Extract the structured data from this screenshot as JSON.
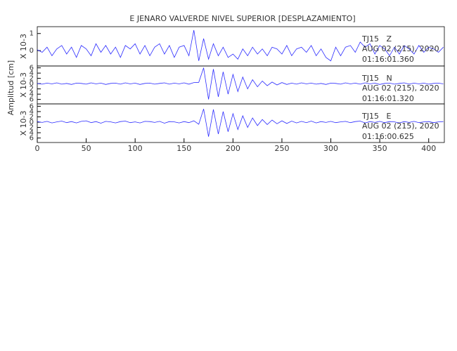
{
  "chart_data": {
    "type": "line",
    "title": "E JENARO VALVERDE NIVEL SUPERIOR [DESPLAZAMIENTO]",
    "ylabel": "Amplitud [cm]",
    "xlim": [
      0,
      416
    ],
    "xticks": [
      0,
      50,
      100,
      150,
      200,
      250,
      300,
      350,
      400
    ],
    "x": [
      0,
      5,
      10,
      15,
      20,
      25,
      30,
      35,
      40,
      45,
      50,
      55,
      60,
      65,
      70,
      75,
      80,
      85,
      90,
      95,
      100,
      105,
      110,
      115,
      120,
      125,
      130,
      135,
      140,
      145,
      150,
      155,
      160,
      165,
      170,
      175,
      180,
      185,
      190,
      195,
      200,
      205,
      210,
      215,
      220,
      225,
      230,
      235,
      240,
      245,
      250,
      255,
      260,
      265,
      270,
      275,
      280,
      285,
      290,
      295,
      300,
      305,
      310,
      315,
      320,
      325,
      330,
      335,
      340,
      345,
      350,
      355,
      360,
      365,
      370,
      375,
      380,
      385,
      390,
      395,
      400,
      405,
      410,
      415
    ],
    "panels": [
      {
        "name": "TJ15   Z",
        "date": "AUG 02 (215), 2020",
        "time": "01:16:01.360",
        "ylabel": "X 10-3",
        "color": "#2b2bff",
        "ylim": [
          -0.9,
          1.4
        ],
        "yticks": [
          1,
          0
        ],
        "values": [
          0.05,
          -0.1,
          0.2,
          -0.3,
          0.1,
          0.3,
          -0.2,
          0.2,
          -0.4,
          0.3,
          0.1,
          -0.3,
          0.4,
          -0.1,
          0.3,
          -0.2,
          0.2,
          -0.4,
          0.3,
          0.1,
          0.4,
          -0.2,
          0.3,
          -0.3,
          0.2,
          0.4,
          -0.2,
          0.3,
          -0.4,
          0.2,
          0.3,
          -0.3,
          1.2,
          -0.6,
          0.7,
          -0.5,
          0.4,
          -0.3,
          0.2,
          -0.4,
          -0.2,
          -0.5,
          0.1,
          -0.3,
          0.2,
          -0.2,
          0.1,
          -0.3,
          0.2,
          0.1,
          -0.2,
          0.3,
          -0.3,
          0.1,
          0.2,
          -0.1,
          0.3,
          -0.3,
          0.1,
          -0.4,
          -0.6,
          0.2,
          -0.3,
          0.2,
          0.3,
          -0.1,
          0.5,
          0.2,
          0.4,
          -0.2,
          0.3,
          0.1,
          -0.3,
          0.2,
          -0.2,
          0.3,
          0.1,
          -0.2,
          0.3,
          -0.1,
          0.2,
          0.1,
          -0.1,
          0.2
        ]
      },
      {
        "name": "TJ15   N",
        "date": "AUG 02 (215), 2020",
        "time": "01:16:01.320",
        "ylabel": "X 10-3",
        "color": "#2b2bff",
        "ylim": [
          -7.7,
          6.7
        ],
        "yticks": [
          6,
          4,
          2,
          0,
          {
            "value": -2,
            "label": "2"
          },
          {
            "value": -4,
            "label": "4"
          },
          {
            "value": -6,
            "label": "6"
          }
        ],
        "values": [
          0.1,
          -0.2,
          0.2,
          -0.1,
          0.3,
          -0.2,
          0.1,
          -0.3,
          0.2,
          0.1,
          -0.2,
          0.3,
          -0.1,
          0.2,
          -0.3,
          0.1,
          0.2,
          -0.2,
          0.3,
          -0.1,
          0.2,
          -0.3,
          0.1,
          0.2,
          -0.2,
          0.1,
          0.3,
          -0.2,
          0.2,
          -0.1,
          0.3,
          -0.2,
          0.4,
          0.5,
          6,
          -6,
          5.5,
          -5,
          4.5,
          -4,
          3.5,
          -3,
          2.5,
          -2,
          1.5,
          -1.2,
          1,
          -0.8,
          0.6,
          -0.5,
          0.4,
          -0.3,
          0.2,
          -0.2,
          0.3,
          -0.1,
          0.2,
          -0.2,
          0.1,
          -0.3,
          0.2,
          0.1,
          -0.2,
          0.3,
          -0.1,
          0.2,
          -0.2,
          0.3,
          -0.1,
          0.2,
          -0.3,
          0.1,
          0.2,
          -0.2,
          0.1,
          0.3,
          -0.2,
          0.2,
          -0.1,
          0.2,
          -0.2,
          0.1,
          0.2,
          -0.1
        ]
      },
      {
        "name": "TJ15   E",
        "date": "AUG 02 (215), 2020",
        "time": "01:16:00.625",
        "ylabel": "X 10-3",
        "color": "#2b2bff",
        "ylim": [
          -7.7,
          6.9
        ],
        "yticks": [
          6,
          4,
          2,
          0,
          {
            "value": -2,
            "label": "2"
          },
          {
            "value": -4,
            "label": "4"
          },
          {
            "value": -6,
            "label": "6"
          }
        ],
        "values": [
          0.2,
          -0.1,
          0.3,
          -0.3,
          0.1,
          0.4,
          -0.2,
          0.2,
          -0.3,
          0.3,
          0.5,
          -0.2,
          0.2,
          -0.4,
          0.3,
          0.1,
          -0.3,
          0.2,
          0.4,
          -0.2,
          0.1,
          -0.3,
          0.3,
          0.2,
          -0.1,
          0.3,
          -0.4,
          0.2,
          0.1,
          -0.3,
          0.2,
          -0.2,
          0.5,
          -0.8,
          5,
          -5.5,
          4.8,
          -4.5,
          4,
          -3.6,
          3.2,
          -2.8,
          2.4,
          -2,
          1.6,
          -1.3,
          1,
          -0.9,
          0.8,
          -0.6,
          0.5,
          -0.5,
          0.4,
          -0.3,
          0.3,
          -0.2,
          0.4,
          -0.3,
          0.2,
          -0.1,
          0.3,
          -0.2,
          0.1,
          0.3,
          -0.2,
          0.2,
          0.4,
          -0.3,
          0.2,
          -0.1,
          0.3,
          -0.2,
          0.2,
          0.1,
          -0.3,
          0.2,
          -0.1,
          0.3,
          -0.2,
          0.1,
          0.2,
          -0.2,
          0.1,
          0.2
        ]
      }
    ]
  }
}
